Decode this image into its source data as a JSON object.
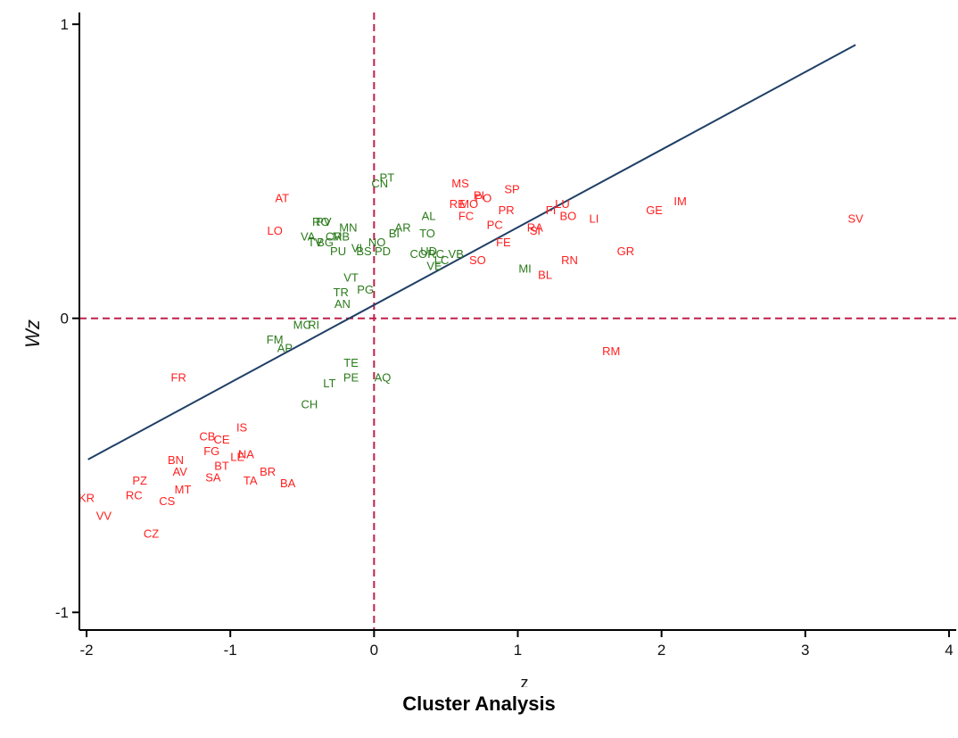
{
  "caption": "Cluster Analysis",
  "chart_data": {
    "type": "scatter",
    "xlabel": "z",
    "ylabel": "Wz",
    "xlim": [
      -2.05,
      4.05
    ],
    "ylim": [
      -1.06,
      1.04
    ],
    "x_ticks": [
      -2,
      -1,
      0,
      1,
      2,
      3,
      4
    ],
    "y_ticks": [
      -1,
      0,
      1
    ],
    "grid": false,
    "colors": {
      "high": "#ff2020",
      "low": "#2a7a1a",
      "fit_line": "#1f3f66",
      "reference_lines": "#c0204a",
      "axes": "#000000"
    },
    "regression_line": {
      "x": [
        -1.99,
        3.35
      ],
      "y": [
        -0.48,
        0.93
      ]
    },
    "reference_lines": {
      "x": 0,
      "y": 0,
      "style": "dashed"
    },
    "series": [
      {
        "points": [
          {
            "label": "SV",
            "x": 3.35,
            "y": 0.34
          },
          {
            "label": "IM",
            "x": 2.13,
            "y": 0.4
          },
          {
            "label": "GE",
            "x": 1.95,
            "y": 0.37
          },
          {
            "label": "GR",
            "x": 1.75,
            "y": 0.23
          },
          {
            "label": "RM",
            "x": 1.65,
            "y": -0.11
          },
          {
            "label": "LI",
            "x": 1.53,
            "y": 0.34
          },
          {
            "label": "LU",
            "x": 1.31,
            "y": 0.39
          },
          {
            "label": "FI",
            "x": 1.23,
            "y": 0.37
          },
          {
            "label": "BO",
            "x": 1.35,
            "y": 0.35
          },
          {
            "label": "RN",
            "x": 1.36,
            "y": 0.2
          },
          {
            "label": "BL",
            "x": 1.19,
            "y": 0.15
          },
          {
            "label": "SP",
            "x": 0.96,
            "y": 0.44
          },
          {
            "label": "PR",
            "x": 0.92,
            "y": 0.37
          },
          {
            "label": "RA",
            "x": 1.12,
            "y": 0.31
          },
          {
            "label": "SI",
            "x": 1.12,
            "y": 0.3
          },
          {
            "label": "PC",
            "x": 0.84,
            "y": 0.32
          },
          {
            "label": "FE",
            "x": 0.9,
            "y": 0.26
          },
          {
            "label": "SO",
            "x": 0.72,
            "y": 0.2
          },
          {
            "label": "MS",
            "x": 0.6,
            "y": 0.46
          },
          {
            "label": "PI",
            "x": 0.73,
            "y": 0.42
          },
          {
            "label": "PO",
            "x": 0.76,
            "y": 0.41
          },
          {
            "label": "RE",
            "x": 0.58,
            "y": 0.39
          },
          {
            "label": "MO",
            "x": 0.66,
            "y": 0.39
          },
          {
            "label": "FC",
            "x": 0.64,
            "y": 0.35
          },
          {
            "label": "AT",
            "x": -0.64,
            "y": 0.41
          },
          {
            "label": "LO",
            "x": -0.69,
            "y": 0.3
          },
          {
            "label": "FR",
            "x": -1.36,
            "y": -0.2
          },
          {
            "label": "IS",
            "x": -0.92,
            "y": -0.37
          },
          {
            "label": "CB",
            "x": -1.16,
            "y": -0.4
          },
          {
            "label": "CE",
            "x": -1.06,
            "y": -0.41
          },
          {
            "label": "FG",
            "x": -1.13,
            "y": -0.45
          },
          {
            "label": "NA",
            "x": -0.89,
            "y": -0.46
          },
          {
            "label": "LE",
            "x": -0.95,
            "y": -0.47
          },
          {
            "label": "BN",
            "x": -1.38,
            "y": -0.48
          },
          {
            "label": "BT",
            "x": -1.06,
            "y": -0.5
          },
          {
            "label": "AV",
            "x": -1.35,
            "y": -0.52
          },
          {
            "label": "BR",
            "x": -0.74,
            "y": -0.52
          },
          {
            "label": "SA",
            "x": -1.12,
            "y": -0.54
          },
          {
            "label": "TA",
            "x": -0.86,
            "y": -0.55
          },
          {
            "label": "BA",
            "x": -0.6,
            "y": -0.56
          },
          {
            "label": "PZ",
            "x": -1.63,
            "y": -0.55
          },
          {
            "label": "MT",
            "x": -1.33,
            "y": -0.58
          },
          {
            "label": "RC",
            "x": -1.67,
            "y": -0.6
          },
          {
            "label": "CS",
            "x": -1.44,
            "y": -0.62
          },
          {
            "label": "KR",
            "x": -2.0,
            "y": -0.61
          },
          {
            "label": "VV",
            "x": -1.88,
            "y": -0.67
          },
          {
            "label": "CZ",
            "x": -1.55,
            "y": -0.73
          }
        ]
      },
      {
        "points": [
          {
            "label": "PT",
            "x": 0.09,
            "y": 0.48
          },
          {
            "label": "CN",
            "x": 0.04,
            "y": 0.46
          },
          {
            "label": "AL",
            "x": 0.38,
            "y": 0.35
          },
          {
            "label": "AR",
            "x": 0.2,
            "y": 0.31
          },
          {
            "label": "BI",
            "x": 0.14,
            "y": 0.29
          },
          {
            "label": "TO",
            "x": 0.37,
            "y": 0.29
          },
          {
            "label": "PV",
            "x": -0.35,
            "y": 0.33
          },
          {
            "label": "RO",
            "x": -0.37,
            "y": 0.33
          },
          {
            "label": "MN",
            "x": -0.18,
            "y": 0.31
          },
          {
            "label": "VA",
            "x": -0.46,
            "y": 0.28
          },
          {
            "label": "CR",
            "x": -0.28,
            "y": 0.28
          },
          {
            "label": "MB",
            "x": -0.23,
            "y": 0.28
          },
          {
            "label": "TV",
            "x": -0.41,
            "y": 0.26
          },
          {
            "label": "BG",
            "x": -0.34,
            "y": 0.26
          },
          {
            "label": "NO",
            "x": 0.02,
            "y": 0.26
          },
          {
            "label": "VI",
            "x": -0.12,
            "y": 0.24
          },
          {
            "label": "BS",
            "x": -0.07,
            "y": 0.23
          },
          {
            "label": "PD",
            "x": 0.06,
            "y": 0.23
          },
          {
            "label": "PU",
            "x": -0.25,
            "y": 0.23
          },
          {
            "label": "CO",
            "x": 0.31,
            "y": 0.22
          },
          {
            "label": "UD",
            "x": 0.38,
            "y": 0.23
          },
          {
            "label": "RC",
            "x": 0.43,
            "y": 0.22
          },
          {
            "label": "VB",
            "x": 0.57,
            "y": 0.22
          },
          {
            "label": "LC",
            "x": 0.47,
            "y": 0.2
          },
          {
            "label": "VE",
            "x": 0.42,
            "y": 0.18
          },
          {
            "label": "MI",
            "x": 1.05,
            "y": 0.17
          },
          {
            "label": "VT",
            "x": -0.16,
            "y": 0.14
          },
          {
            "label": "PG",
            "x": -0.06,
            "y": 0.1
          },
          {
            "label": "TR",
            "x": -0.23,
            "y": 0.09
          },
          {
            "label": "AN",
            "x": -0.22,
            "y": 0.05
          },
          {
            "label": "MC",
            "x": -0.5,
            "y": -0.02
          },
          {
            "label": "RI",
            "x": -0.42,
            "y": -0.02
          },
          {
            "label": "FM",
            "x": -0.69,
            "y": -0.07
          },
          {
            "label": "AP",
            "x": -0.62,
            "y": -0.1
          },
          {
            "label": "TE",
            "x": -0.16,
            "y": -0.15
          },
          {
            "label": "PE",
            "x": -0.16,
            "y": -0.2
          },
          {
            "label": "AQ",
            "x": 0.06,
            "y": -0.2
          },
          {
            "label": "LT",
            "x": -0.31,
            "y": -0.22
          },
          {
            "label": "CH",
            "x": -0.45,
            "y": -0.29
          }
        ]
      }
    ]
  }
}
